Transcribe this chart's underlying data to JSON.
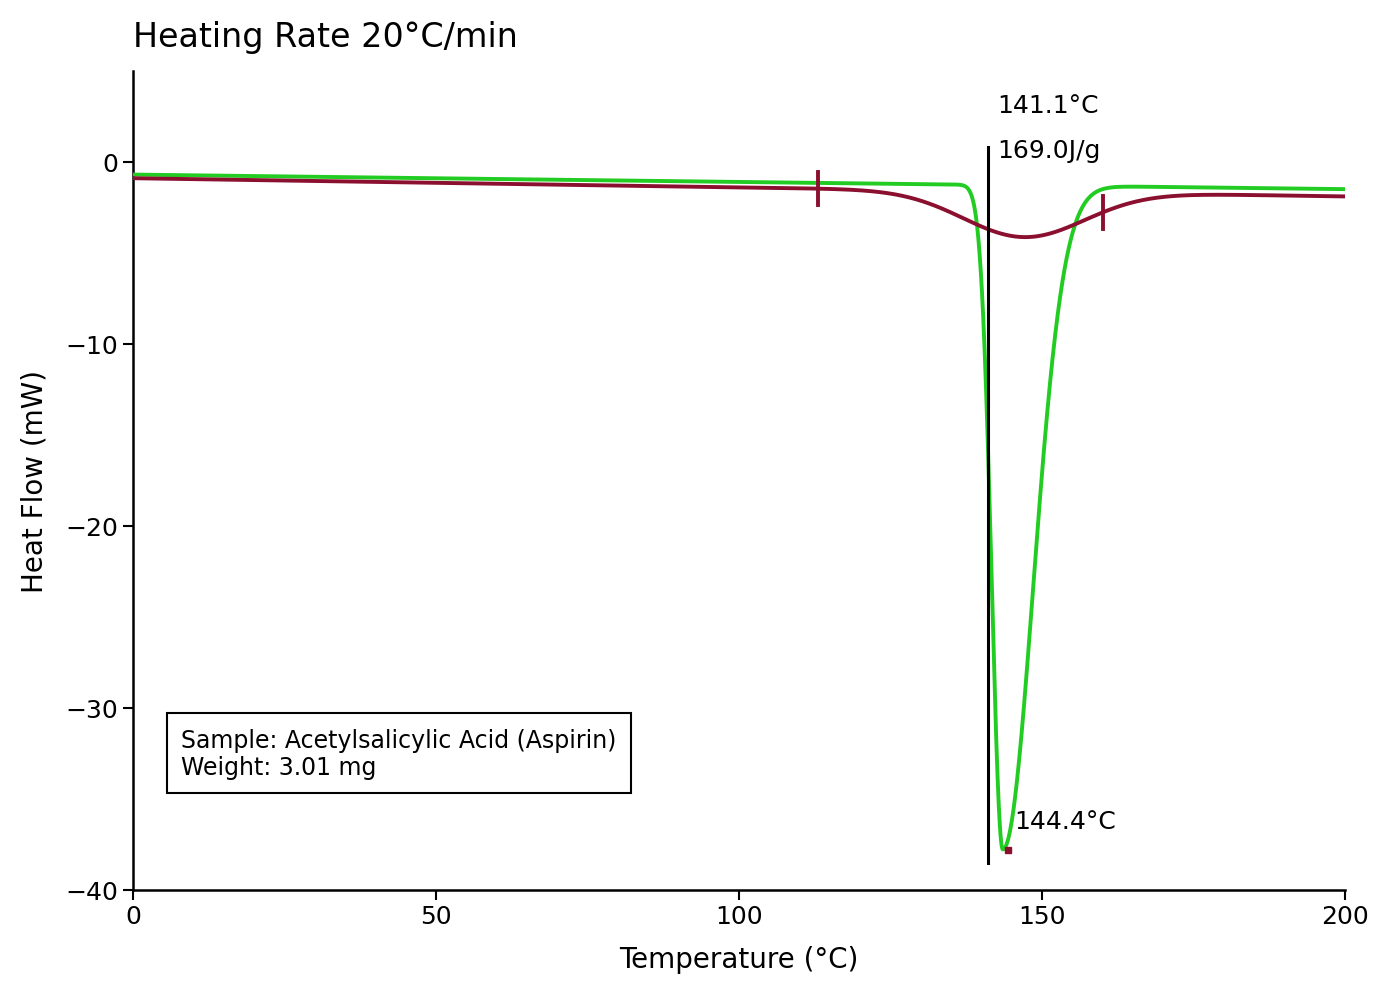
{
  "title": "Heating Rate 20°C/min",
  "xlabel": "Temperature (°C)",
  "ylabel": "Heat Flow (mW)",
  "xlim": [
    0,
    200
  ],
  "ylim": [
    -40,
    5
  ],
  "xticks": [
    0,
    50,
    100,
    150,
    200
  ],
  "yticks": [
    0,
    -10,
    -20,
    -30,
    -40
  ],
  "green_color": "#22cc22",
  "darkred_color": "#8b1030",
  "black_color": "#000000",
  "annotation_141": "141.1°C",
  "annotation_169": "169.0J/g",
  "annotation_144": "144.4°C",
  "sample_label": "Sample: Acetylsalicylic Acid (Aspirin)\nWeight: 3.01 mg",
  "peak_x": 141.1,
  "trough_x": 144.4,
  "tick1_x": 113.0,
  "tick2_x": 160.0,
  "background_color": "#ffffff",
  "title_fontsize": 24,
  "label_fontsize": 20,
  "tick_fontsize": 18,
  "annotation_fontsize": 18
}
